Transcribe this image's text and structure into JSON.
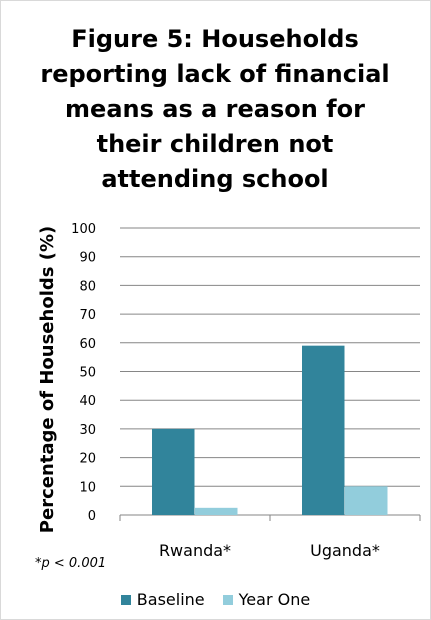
{
  "chart_data": {
    "type": "bar",
    "title_lines": [
      "Figure 5: Households",
      "reporting lack of financial",
      "means as a reason for",
      "their children not",
      "attending school"
    ],
    "ylabel": "Percentage of Households  (%)",
    "xlabel": "",
    "categories": [
      "Rwanda*",
      "Uganda*"
    ],
    "series": [
      {
        "name": "Baseline",
        "color": "#31849b",
        "values": [
          30,
          59
        ]
      },
      {
        "name": "Year One",
        "color": "#92cddc",
        "values": [
          2.5,
          10
        ]
      }
    ],
    "ylim": [
      0,
      100
    ],
    "yticks": [
      "0",
      "10",
      "20",
      "30",
      "40",
      "50",
      "60",
      "70",
      "80",
      "90",
      "100"
    ],
    "grid": true,
    "legend_position": "bottom",
    "footnote": "*p < 0.001"
  }
}
